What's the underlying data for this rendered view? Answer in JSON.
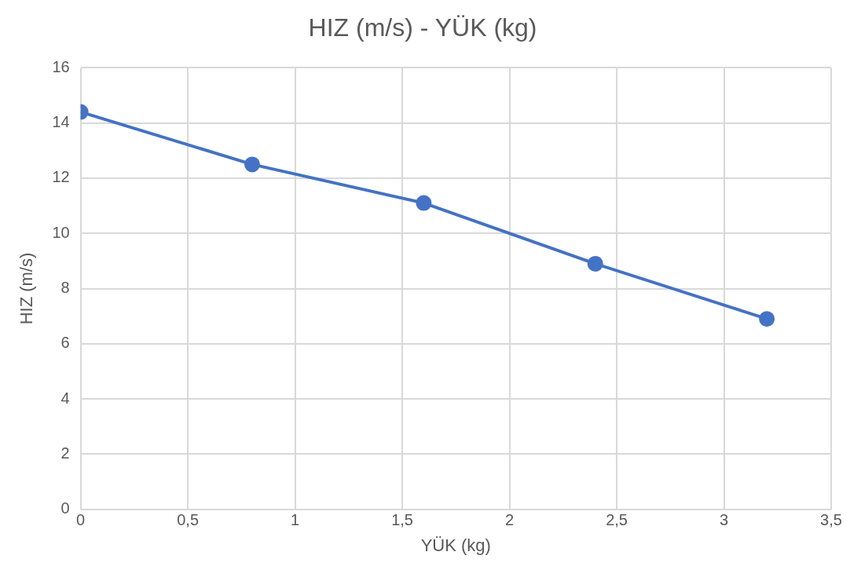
{
  "chart_data": {
    "type": "line",
    "title": "HIZ (m/s) - YÜK (kg)",
    "xlabel": "YÜK (kg)",
    "ylabel": "HIZ (m/s)",
    "x": [
      0,
      0.8,
      1.6,
      2.4,
      3.2
    ],
    "series": [
      {
        "color": "#4472c4",
        "values": [
          14.4,
          12.5,
          11.1,
          8.9,
          6.9
        ]
      }
    ],
    "xlim": [
      0,
      3.5
    ],
    "xticks": [
      0,
      {
        "value": 0.5,
        "label": "0,5"
      },
      1,
      {
        "value": 1.5,
        "label": "1,5"
      },
      2,
      {
        "value": 2.5,
        "label": "2,5"
      },
      3,
      {
        "value": 3.5,
        "label": "3,5"
      }
    ],
    "ylim": [
      0,
      16
    ],
    "yticks": [
      0,
      2,
      4,
      6,
      8,
      10,
      12,
      14,
      16
    ],
    "grid": true,
    "legend": false,
    "marker": "circle",
    "line_style": "solid"
  }
}
